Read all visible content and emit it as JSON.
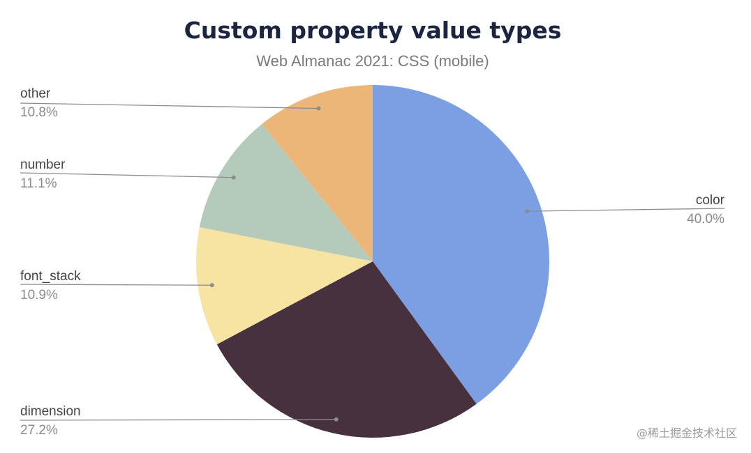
{
  "chart_data": {
    "type": "pie",
    "title": "Custom property value types",
    "subtitle": "Web Almanac 2021: CSS (mobile)",
    "slices": [
      {
        "label": "color",
        "value": 40.0,
        "display": "40.0%",
        "color": "#7b9fe2"
      },
      {
        "label": "dimension",
        "value": 27.2,
        "display": "27.2%",
        "color": "#48313f"
      },
      {
        "label": "font_stack",
        "value": 10.9,
        "display": "10.9%",
        "color": "#f8e4a2"
      },
      {
        "label": "number",
        "value": 11.1,
        "display": "11.1%",
        "color": "#b4cbbc"
      },
      {
        "label": "other",
        "value": 10.8,
        "display": "10.8%",
        "color": "#ebb677"
      }
    ],
    "legend": "none"
  },
  "watermark": "@稀土掘金技术社区"
}
